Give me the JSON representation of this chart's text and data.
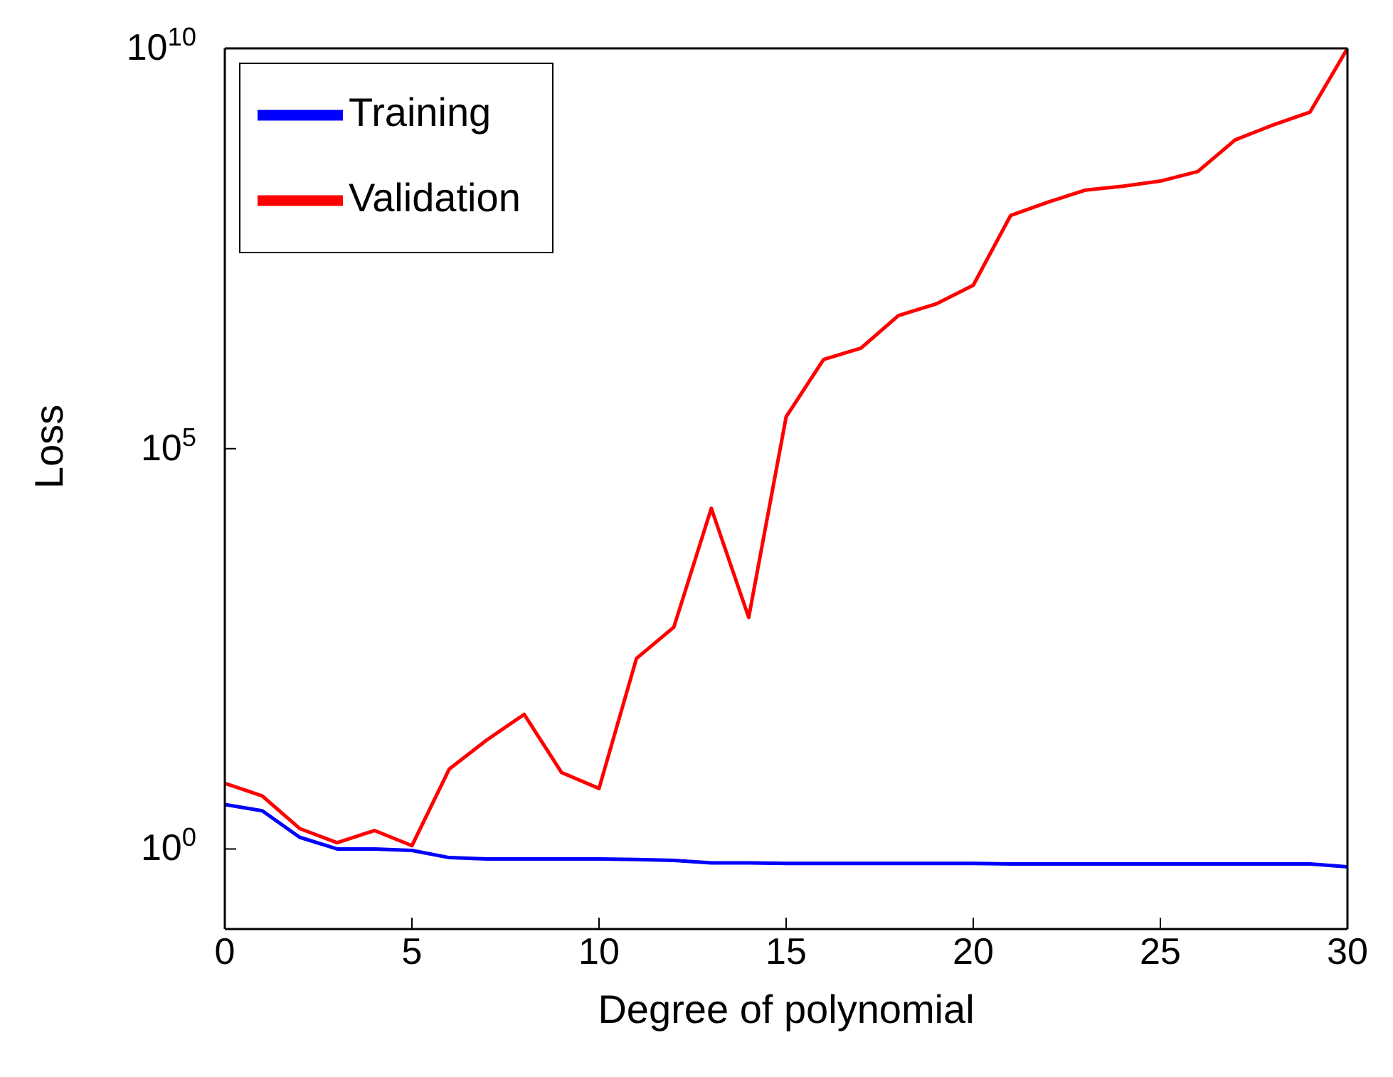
{
  "chart_data": {
    "type": "line",
    "xlabel": "Degree of polynomial",
    "ylabel": "Loss",
    "log": "y",
    "legend": "top left",
    "x": [
      0,
      1,
      2,
      3,
      4,
      5,
      6,
      7,
      8,
      9,
      10,
      11,
      12,
      13,
      14,
      15,
      16,
      17,
      18,
      19,
      20,
      21,
      22,
      23,
      24,
      25,
      26,
      27,
      28,
      29,
      30
    ],
    "xlim": [
      0,
      30
    ],
    "xticks": [
      0,
      5,
      10,
      15,
      20,
      25,
      30
    ],
    "ylim": [
      0.1,
      10000000000
    ],
    "yticks": [
      {
        "value": 1,
        "label": "10$^{0}$"
      },
      {
        "value": 100000,
        "label": "10$^{5}$"
      },
      {
        "value": 10000000000,
        "label": "10$^{10}$"
      }
    ],
    "series": [
      {
        "name": "Training",
        "color": "#0000ff",
        "values": [
          3.6,
          3.0,
          1.4,
          1.0,
          1.0,
          0.96,
          0.78,
          0.75,
          0.75,
          0.75,
          0.75,
          0.74,
          0.72,
          0.67,
          0.67,
          0.66,
          0.66,
          0.66,
          0.66,
          0.66,
          0.66,
          0.65,
          0.65,
          0.65,
          0.65,
          0.65,
          0.65,
          0.65,
          0.65,
          0.65,
          0.6
        ]
      },
      {
        "name": "Validation",
        "color": "#ff0000",
        "values": [
          6.6,
          4.6,
          1.8,
          1.2,
          1.7,
          1.1,
          10,
          23,
          48,
          9,
          5.7,
          240,
          590,
          18000,
          780,
          250000,
          1300000,
          1800000,
          4600000,
          6400000,
          11000000,
          82000000,
          120000000,
          170000000,
          190000000,
          220000000,
          290000000,
          720000000,
          1100000000,
          1600000000,
          10000000000
        ]
      }
    ]
  }
}
